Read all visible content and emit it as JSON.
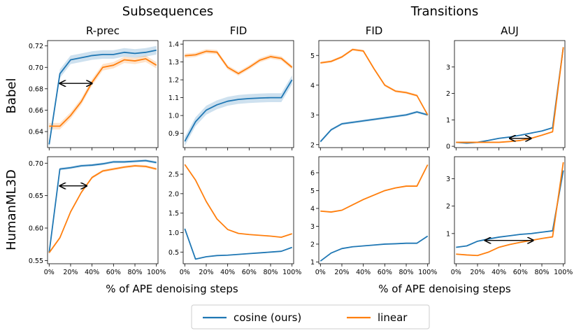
{
  "colors": {
    "cosine": "#1f77b4",
    "linear": "#ff7f0e"
  },
  "group_titles": [
    "Subsequences",
    "Transitions"
  ],
  "row_labels": [
    "Babel",
    "HumanML3D"
  ],
  "xlabels": [
    "% of APE denoising steps",
    "% of APE denoising steps"
  ],
  "legend": [
    "cosine (ours)",
    "linear"
  ],
  "chart_data": [
    {
      "type": "line",
      "title": "R-prec",
      "row": "Babel",
      "x": [
        0,
        10,
        20,
        30,
        40,
        50,
        60,
        70,
        80,
        90,
        100
      ],
      "xticks": [
        "0%",
        "20%",
        "40%",
        "60%",
        "80%",
        "100%"
      ],
      "ylim": [
        0.625,
        0.725
      ],
      "yticks": [
        {
          "v": 0.64,
          "l": "0.64"
        },
        {
          "v": 0.66,
          "l": "0.66"
        },
        {
          "v": 0.68,
          "l": "0.68"
        },
        {
          "v": 0.7,
          "l": "0.70"
        },
        {
          "v": 0.72,
          "l": "0.72"
        }
      ],
      "series": [
        {
          "name": "cosine (ours)",
          "values": [
            0.628,
            0.694,
            0.707,
            0.709,
            0.711,
            0.712,
            0.712,
            0.714,
            0.713,
            0.714,
            0.716
          ],
          "band": 0.004
        },
        {
          "name": "linear",
          "values": [
            0.645,
            0.645,
            0.655,
            0.668,
            0.686,
            0.7,
            0.702,
            0.707,
            0.706,
            0.708,
            0.702
          ],
          "band": 0.003
        }
      ],
      "arrow": {
        "x1": 10,
        "x2": 40,
        "y": 0.685
      }
    },
    {
      "type": "line",
      "title": "FID",
      "row": "Babel",
      "x": [
        0,
        10,
        20,
        30,
        40,
        50,
        60,
        70,
        80,
        90,
        100
      ],
      "xticks": [
        "0%",
        "20%",
        "40%",
        "60%",
        "80%",
        "100%"
      ],
      "ylim": [
        0.82,
        1.42
      ],
      "yticks": [
        {
          "v": 0.9,
          "l": "0.9"
        },
        {
          "v": 1.0,
          "l": "1.0"
        },
        {
          "v": 1.1,
          "l": "1.1"
        },
        {
          "v": 1.2,
          "l": "1.2"
        },
        {
          "v": 1.3,
          "l": "1.3"
        },
        {
          "v": 1.4,
          "l": "1.4"
        }
      ],
      "series": [
        {
          "name": "cosine (ours)",
          "values": [
            0.855,
            0.965,
            1.03,
            1.06,
            1.08,
            1.09,
            1.095,
            1.098,
            1.1,
            1.1,
            1.2
          ],
          "band": 0.025
        },
        {
          "name": "linear",
          "values": [
            1.335,
            1.34,
            1.36,
            1.355,
            1.27,
            1.235,
            1.27,
            1.31,
            1.33,
            1.32,
            1.27
          ],
          "band": 0.012
        }
      ]
    },
    {
      "type": "line",
      "title": "FID",
      "row": "Babel",
      "x": [
        0,
        10,
        20,
        30,
        40,
        50,
        60,
        70,
        80,
        90,
        100
      ],
      "xticks": [
        "0%",
        "20%",
        "40%",
        "60%",
        "80%",
        "100%"
      ],
      "ylim": [
        1.9,
        5.5
      ],
      "yticks": [
        {
          "v": 2,
          "l": "2"
        },
        {
          "v": 3,
          "l": "3"
        },
        {
          "v": 4,
          "l": "4"
        },
        {
          "v": 5,
          "l": "5"
        }
      ],
      "series": [
        {
          "name": "cosine (ours)",
          "values": [
            2.1,
            2.5,
            2.7,
            2.75,
            2.8,
            2.85,
            2.9,
            2.95,
            3.0,
            3.1,
            3.0
          ],
          "band": 0.04
        },
        {
          "name": "linear",
          "values": [
            4.75,
            4.8,
            4.95,
            5.2,
            5.15,
            4.55,
            4.0,
            3.8,
            3.75,
            3.65,
            3.0
          ],
          "band": 0.04
        }
      ]
    },
    {
      "type": "line",
      "title": "AUJ",
      "row": "Babel",
      "x": [
        0,
        10,
        20,
        30,
        40,
        50,
        60,
        70,
        80,
        90,
        100
      ],
      "xticks": [
        "0%",
        "20%",
        "40%",
        "60%",
        "80%",
        "100%"
      ],
      "ylim": [
        -0.05,
        4.0
      ],
      "yticks": [
        {
          "v": 0,
          "l": "0"
        },
        {
          "v": 1,
          "l": "1"
        },
        {
          "v": 2,
          "l": "2"
        },
        {
          "v": 3,
          "l": "3"
        }
      ],
      "series": [
        {
          "name": "cosine (ours)",
          "values": [
            0.15,
            0.12,
            0.15,
            0.22,
            0.3,
            0.35,
            0.42,
            0.5,
            0.58,
            0.7,
            3.75
          ],
          "band": 0.02
        },
        {
          "name": "linear",
          "values": [
            0.15,
            0.15,
            0.15,
            0.15,
            0.15,
            0.18,
            0.22,
            0.3,
            0.42,
            0.55,
            3.75
          ],
          "band": 0.02
        }
      ],
      "arrow": {
        "x1": 50,
        "x2": 70,
        "y": 0.3
      }
    },
    {
      "type": "line",
      "title": "",
      "row": "HumanML3D",
      "x": [
        0,
        10,
        20,
        30,
        40,
        50,
        60,
        70,
        80,
        90,
        100
      ],
      "xticks": [
        "0%",
        "20%",
        "40%",
        "60%",
        "80%",
        "100%"
      ],
      "ylim": [
        0.545,
        0.71
      ],
      "yticks": [
        {
          "v": 0.55,
          "l": "0.55"
        },
        {
          "v": 0.6,
          "l": "0.60"
        },
        {
          "v": 0.65,
          "l": "0.65"
        },
        {
          "v": 0.7,
          "l": "0.70"
        }
      ],
      "series": [
        {
          "name": "cosine (ours)",
          "values": [
            0.562,
            0.691,
            0.693,
            0.696,
            0.697,
            0.699,
            0.702,
            0.702,
            0.703,
            0.704,
            0.701
          ],
          "band": 0.002
        },
        {
          "name": "linear",
          "values": [
            0.562,
            0.585,
            0.625,
            0.655,
            0.678,
            0.688,
            0.691,
            0.694,
            0.696,
            0.695,
            0.691
          ],
          "band": 0.002
        }
      ],
      "arrow": {
        "x1": 10,
        "x2": 35,
        "y": 0.665
      }
    },
    {
      "type": "line",
      "title": "",
      "row": "HumanML3D",
      "x": [
        0,
        10,
        20,
        30,
        40,
        50,
        60,
        70,
        80,
        90,
        100
      ],
      "xticks": [
        "0%",
        "20%",
        "40%",
        "60%",
        "80%",
        "100%"
      ],
      "ylim": [
        0.2,
        2.95
      ],
      "yticks": [
        {
          "v": 0.5,
          "l": "0.5"
        },
        {
          "v": 1.0,
          "l": "1.0"
        },
        {
          "v": 1.5,
          "l": "1.5"
        },
        {
          "v": 2.0,
          "l": "2.0"
        },
        {
          "v": 2.5,
          "l": "2.5"
        }
      ],
      "series": [
        {
          "name": "cosine (ours)",
          "values": [
            1.1,
            0.32,
            0.38,
            0.41,
            0.42,
            0.44,
            0.46,
            0.48,
            0.5,
            0.52,
            0.62
          ],
          "band": 0.01
        },
        {
          "name": "linear",
          "values": [
            2.75,
            2.35,
            1.8,
            1.35,
            1.08,
            0.98,
            0.95,
            0.93,
            0.91,
            0.88,
            0.97
          ],
          "band": 0.01
        }
      ]
    },
    {
      "type": "line",
      "title": "",
      "row": "HumanML3D",
      "x": [
        0,
        10,
        20,
        30,
        40,
        50,
        60,
        70,
        80,
        90,
        100
      ],
      "xticks": [
        "0%",
        "20%",
        "40%",
        "60%",
        "80%",
        "100%"
      ],
      "ylim": [
        0.9,
        6.9
      ],
      "yticks": [
        {
          "v": 1,
          "l": "1"
        },
        {
          "v": 2,
          "l": "2"
        },
        {
          "v": 3,
          "l": "3"
        },
        {
          "v": 4,
          "l": "4"
        },
        {
          "v": 5,
          "l": "5"
        },
        {
          "v": 6,
          "l": "6"
        }
      ],
      "series": [
        {
          "name": "cosine (ours)",
          "values": [
            1.05,
            1.5,
            1.75,
            1.85,
            1.9,
            1.95,
            2.0,
            2.02,
            2.05,
            2.05,
            2.45
          ],
          "band": 0.02
        },
        {
          "name": "linear",
          "values": [
            3.85,
            3.8,
            3.9,
            4.2,
            4.5,
            4.75,
            5.0,
            5.15,
            5.25,
            5.25,
            6.45
          ],
          "band": 0.04
        }
      ]
    },
    {
      "type": "line",
      "title": "",
      "row": "HumanML3D",
      "x": [
        0,
        10,
        20,
        30,
        40,
        50,
        60,
        70,
        80,
        90,
        100
      ],
      "xticks": [
        "0%",
        "20%",
        "40%",
        "60%",
        "80%",
        "100%"
      ],
      "ylim": [
        -0.1,
        3.8
      ],
      "yticks": [
        {
          "v": 1,
          "l": "1"
        },
        {
          "v": 2,
          "l": "2"
        },
        {
          "v": 3,
          "l": "3"
        }
      ],
      "series": [
        {
          "name": "cosine (ours)",
          "values": [
            0.5,
            0.55,
            0.72,
            0.8,
            0.87,
            0.92,
            0.97,
            1.0,
            1.05,
            1.1,
            3.3
          ],
          "band": 0.02
        },
        {
          "name": "linear",
          "values": [
            0.25,
            0.22,
            0.2,
            0.32,
            0.5,
            0.6,
            0.68,
            0.75,
            0.82,
            0.88,
            3.6
          ],
          "band": 0.02
        }
      ],
      "arrow": {
        "x1": 27,
        "x2": 72,
        "y": 0.75
      }
    }
  ]
}
